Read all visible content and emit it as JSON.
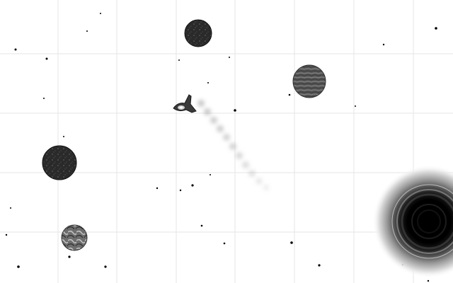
{
  "scene": {
    "name": "space-field",
    "background": "#ffffff",
    "grid_color": "#e6e6e6",
    "star_color": "#000000"
  },
  "ship": {
    "icon": "spaceship-icon",
    "heading": "left"
  },
  "planets": [
    {
      "name": "planet-top-center",
      "texture": "dark-speckled"
    },
    {
      "name": "planet-upper-right",
      "texture": "grey-striated"
    },
    {
      "name": "planet-left",
      "texture": "dark-speckled"
    },
    {
      "name": "planet-bottom-left",
      "texture": "grey-marbled"
    }
  ],
  "black_hole": {
    "icon": "black-hole-icon",
    "color": "#000000"
  }
}
